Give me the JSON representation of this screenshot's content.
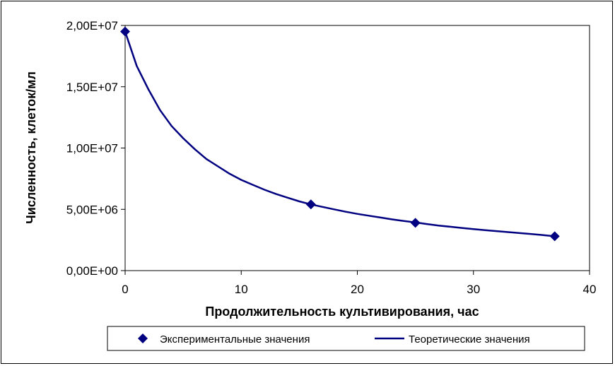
{
  "chart_data": {
    "type": "scatter",
    "xlabel": "Продолжительность культивирования, час",
    "ylabel": "Численность, клеток/мл",
    "xlim": [
      0,
      40
    ],
    "ylim": [
      0,
      20000000
    ],
    "x_ticks": [
      0,
      10,
      20,
      30,
      40
    ],
    "x_tick_labels": [
      "0",
      "10",
      "20",
      "30",
      "40"
    ],
    "y_ticks": [
      0,
      5000000,
      10000000,
      15000000,
      20000000
    ],
    "y_tick_labels": [
      "0,00E+00",
      "5,00E+06",
      "1,00E+07",
      "1,50E+07",
      "2,00E+07"
    ],
    "grid": false,
    "legend_position": "bottom",
    "series": [
      {
        "name": "Экспериментальные значения",
        "kind": "markers",
        "marker": "diamond",
        "color": "#000080",
        "x": [
          0,
          16,
          25,
          37
        ],
        "y": [
          19500000,
          5400000,
          3900000,
          2800000
        ]
      },
      {
        "name": "Теоретические значения",
        "kind": "line",
        "color": "#000080",
        "x": [
          0,
          1,
          2,
          3,
          4,
          5,
          6,
          7,
          8,
          9,
          10,
          11,
          12,
          13,
          14,
          15,
          16,
          17,
          18,
          19,
          20,
          21,
          22,
          23,
          24,
          25,
          26,
          27,
          28,
          29,
          30,
          31,
          32,
          33,
          34,
          35,
          36,
          37
        ],
        "y": [
          19500000,
          16700000,
          14800000,
          13100000,
          11800000,
          10800000,
          9900000,
          9100000,
          8500000,
          7900000,
          7400000,
          7000000,
          6600000,
          6250000,
          5950000,
          5650000,
          5400000,
          5200000,
          5000000,
          4800000,
          4630000,
          4480000,
          4330000,
          4180000,
          4050000,
          3930000,
          3800000,
          3680000,
          3580000,
          3480000,
          3390000,
          3300000,
          3220000,
          3140000,
          3060000,
          2980000,
          2900000,
          2800000
        ]
      }
    ]
  }
}
